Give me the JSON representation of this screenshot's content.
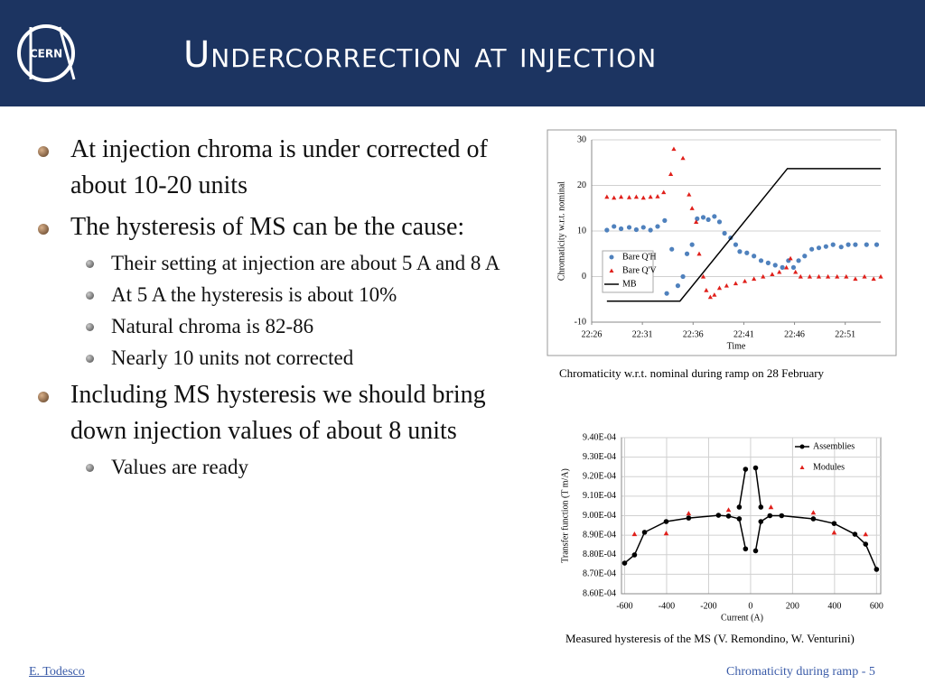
{
  "header": {
    "logo": "CERN",
    "title": "Undercorrection at injection"
  },
  "bullets": [
    {
      "text": "At injection chroma is under corrected of about 10-20 units",
      "sub": []
    },
    {
      "text": "The hysteresis of MS can be the cause:",
      "sub": [
        "Their setting at injection are about 5 A and 8 A",
        "At 5 A the hysteresis is about 10%",
        "Natural chroma is 82-86",
        "Nearly 10 units not corrected"
      ]
    },
    {
      "text": "Including MS hysteresis we should bring down injection values of about 8 units",
      "sub": [
        "Values are ready"
      ]
    }
  ],
  "captions": [
    "Chromaticity w.r.t. nominal during ramp on 28 February",
    "Measured hysteresis of the MS (V. Remondino, W. Venturini)"
  ],
  "footer": {
    "author": "E. Todesco",
    "page": "Chromaticity during ramp - 5"
  },
  "chart_data": [
    {
      "type": "scatter",
      "x_label": "Time",
      "y_label": "Chromaticity w.r.t. nominal",
      "xlim": [
        1346,
        1374.5
      ],
      "ylim": [
        -10,
        30
      ],
      "grid": true,
      "xticks": [
        {
          "value": 1346,
          "label": "22:26"
        },
        {
          "value": 1351,
          "label": "22:31"
        },
        {
          "value": 1356,
          "label": "22:36"
        },
        {
          "value": 1361,
          "label": "22:41"
        },
        {
          "value": 1366,
          "label": "22:46"
        },
        {
          "value": 1371,
          "label": "22:51"
        }
      ],
      "yticks": [
        -10,
        0,
        10,
        20,
        30
      ],
      "legend": "left",
      "series": [
        {
          "name": "Bare Q'H",
          "color": "#4f81bd",
          "marker": "circle",
          "x": [
            1347.5,
            1348.2,
            1348.9,
            1349.7,
            1350.4,
            1351.1,
            1351.8,
            1352.5,
            1353.2,
            1353.4,
            1353.9,
            1354.5,
            1355.0,
            1355.4,
            1355.9,
            1356.4,
            1357.0,
            1357.5,
            1358.1,
            1358.6,
            1359.1,
            1359.7,
            1360.2,
            1360.6,
            1361.3,
            1362.0,
            1362.7,
            1363.4,
            1364.1,
            1364.8,
            1365.4,
            1365.9,
            1366.4,
            1367.0,
            1367.7,
            1368.4,
            1369.1,
            1369.8,
            1370.6,
            1371.3,
            1372.0,
            1373.1,
            1374.1
          ],
          "values": [
            10.2,
            11,
            10.5,
            10.8,
            10.3,
            10.8,
            10.2,
            11,
            12.3,
            -3.7,
            6,
            -2,
            0,
            5,
            7,
            12.7,
            13,
            12.5,
            13.2,
            12,
            9.5,
            8.5,
            7,
            5.5,
            5.2,
            4.5,
            3.5,
            3,
            2.5,
            2,
            3.5,
            2,
            3.5,
            4.5,
            6,
            6.3,
            6.6,
            7,
            6.5,
            7,
            7,
            7,
            7
          ]
        },
        {
          "name": "Bare Q'V",
          "color": "#e0201b",
          "marker": "triangle",
          "x": [
            1347.5,
            1348.2,
            1348.9,
            1349.7,
            1350.4,
            1351.1,
            1351.8,
            1352.5,
            1353.1,
            1353.8,
            1354.1,
            1355.0,
            1355.6,
            1355.9,
            1356.3,
            1356.6,
            1357.0,
            1357.3,
            1357.7,
            1358.1,
            1358.6,
            1359.3,
            1360.2,
            1361.1,
            1362.0,
            1362.9,
            1363.8,
            1364.5,
            1365.2,
            1365.6,
            1366.1,
            1366.6,
            1367.5,
            1368.4,
            1369.3,
            1370.2,
            1371.1,
            1372.0,
            1372.9,
            1373.8,
            1374.5
          ],
          "values": [
            17.5,
            17.3,
            17.5,
            17.4,
            17.5,
            17.3,
            17.5,
            17.6,
            18.5,
            22.5,
            28,
            26,
            18,
            15,
            12,
            5,
            0,
            -3,
            -4.5,
            -4,
            -2.5,
            -2,
            -1.5,
            -1,
            -0.5,
            0,
            0.5,
            1,
            2,
            4,
            1,
            0,
            0,
            0,
            0,
            0,
            0,
            -0.5,
            0,
            -0.5,
            0
          ]
        },
        {
          "name": "MB",
          "color": "#000000",
          "marker": "line",
          "x": [
            1347.5,
            1354.7,
            1365.3,
            1374.5
          ],
          "values": [
            -5.4,
            -5.4,
            23.7,
            23.7
          ]
        }
      ]
    },
    {
      "type": "scatter",
      "x_label": "Current (A)",
      "y_label": "Transfer function (T m/A)",
      "xlim": [
        -615,
        620
      ],
      "ylim": [
        0.00086,
        0.00094
      ],
      "grid": true,
      "xticks": [
        -600,
        -400,
        -200,
        0,
        200,
        400,
        600
      ],
      "yticks": [
        {
          "value": 0.00086,
          "label": "8.60E-04"
        },
        {
          "value": 0.00087,
          "label": "8.70E-04"
        },
        {
          "value": 0.00088,
          "label": "8.80E-04"
        },
        {
          "value": 0.00089,
          "label": "8.90E-04"
        },
        {
          "value": 0.0009,
          "label": "9.00E-04"
        },
        {
          "value": 0.00091,
          "label": "9.10E-04"
        },
        {
          "value": 0.00092,
          "label": "9.20E-04"
        },
        {
          "value": 0.00093,
          "label": "9.30E-04"
        },
        {
          "value": 0.00094,
          "label": "9.40E-04"
        }
      ],
      "legend": "upper right",
      "series": [
        {
          "name": "Assemblies",
          "color": "#000000",
          "marker": "line-circle",
          "x": [
            -600,
            -553,
            -505,
            -402,
            -295,
            -153,
            -105,
            -54,
            -24,
            -54,
            -54,
            -24,
            24,
            24,
            49,
            24,
            24,
            49,
            92,
            148,
            299,
            398,
            497,
            548,
            600
          ],
          "values": [
            0.0008757,
            0.0008799,
            0.0008915,
            0.000897,
            0.0008988,
            0.0009002,
            0.0008998,
            0.0008984,
            0.000883,
            null,
            0.0009044,
            0.0009238,
            null,
            0.0009245,
            0.0009044,
            null,
            0.000882,
            0.000897,
            0.0009,
            0.0009,
            0.0008984,
            0.000896,
            0.0008905,
            0.0008854,
            0.0008725
          ]
        },
        {
          "name": "Modules",
          "color": "#e0201b",
          "marker": "triangle",
          "x": [
            -553,
            -402,
            -295,
            -105,
            97,
            299,
            398,
            548
          ],
          "values": [
            0.0008906,
            0.000891,
            0.0009012,
            0.000903,
            0.0009044,
            0.0009016,
            0.0008914,
            0.0008905
          ]
        }
      ]
    }
  ]
}
